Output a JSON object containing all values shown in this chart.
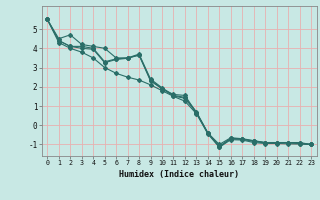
{
  "xlabel": "Humidex (Indice chaleur)",
  "background_color": "#c8e8e4",
  "grid_color": "#e8b0b0",
  "line_color": "#2a6e68",
  "xlim": [
    -0.5,
    23.5
  ],
  "ylim": [
    -1.6,
    6.2
  ],
  "xticks": [
    0,
    1,
    2,
    3,
    4,
    5,
    6,
    7,
    8,
    9,
    10,
    11,
    12,
    13,
    14,
    15,
    16,
    17,
    18,
    19,
    20,
    21,
    22,
    23
  ],
  "yticks": [
    -1,
    0,
    1,
    2,
    3,
    4,
    5
  ],
  "lines": [
    [
      5.5,
      4.5,
      4.7,
      4.2,
      4.1,
      4.0,
      3.5,
      3.5,
      3.65,
      2.3,
      1.9,
      1.6,
      1.55,
      0.65,
      -0.4,
      -1.0,
      -0.65,
      -0.7,
      -0.8,
      -0.9,
      -0.9,
      -0.9,
      -0.9,
      -1.0
    ],
    [
      5.5,
      4.4,
      4.1,
      4.1,
      4.0,
      3.3,
      3.45,
      3.5,
      3.7,
      2.4,
      1.95,
      1.55,
      1.45,
      0.7,
      -0.4,
      -1.1,
      -0.68,
      -0.72,
      -0.82,
      -0.9,
      -0.9,
      -0.9,
      -0.94,
      -1.0
    ],
    [
      5.5,
      4.4,
      4.1,
      4.0,
      3.95,
      3.25,
      3.42,
      3.48,
      3.65,
      2.35,
      1.9,
      1.52,
      1.4,
      0.65,
      -0.42,
      -1.12,
      -0.7,
      -0.73,
      -0.84,
      -0.92,
      -0.92,
      -0.92,
      -0.95,
      -1.0
    ],
    [
      5.5,
      4.3,
      4.0,
      3.8,
      3.5,
      3.0,
      2.7,
      2.5,
      2.35,
      2.1,
      1.8,
      1.5,
      1.25,
      0.6,
      -0.45,
      -1.15,
      -0.75,
      -0.77,
      -0.9,
      -0.95,
      -0.95,
      -0.97,
      -0.98,
      -1.0
    ]
  ]
}
